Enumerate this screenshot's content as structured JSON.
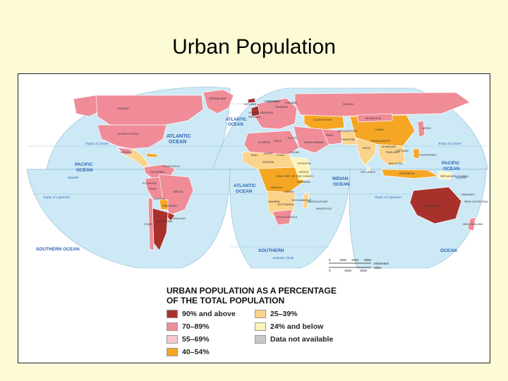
{
  "slide": {
    "title": "Urban Population"
  },
  "colors": {
    "background": "#fdfbd6",
    "ocean": "#cde9f6",
    "cat_90_above": "#a8312c",
    "cat_70_89": "#ef8c97",
    "cat_55_69": "#f6c8c8",
    "cat_40_54": "#f5a623",
    "cat_25_39": "#fbd38a",
    "cat_24_below": "#fff4b8",
    "cat_na": "#c8c8c8"
  },
  "map": {
    "ocean_labels": {
      "atlantic_n": "ATLANTIC\nOCEAN",
      "pacific_w": "PACIFIC\nOCEAN",
      "pacific_e": "PACIFIC\nOCEAN",
      "atlantic_s": "ATLANTIC\nOCEAN",
      "indian": "INDIAN\nOCEAN",
      "southern_w": "SOUTHERN OCEAN",
      "southern_m": "SOUTHERN",
      "southern_e": "OCEAN"
    },
    "lines": {
      "arctic_circle": "Arctic Circle",
      "tropic_cancer_w": "Tropic of Cancer",
      "tropic_cancer_e": "Tropic of Cancer",
      "equator_w": "Equator",
      "equator_e": "Equator",
      "tropic_capricorn_w": "Tropic of Capricorn",
      "tropic_capricorn_e": "Tropic of Capricorn",
      "antarctic_circle": "Antarctic Circle"
    },
    "countries": {
      "greenland": "GREENLAND",
      "us_alaska": "U.S.\n(Alaska)",
      "canada": "CANADA",
      "united_states": "UNITED STATES",
      "us_hawaii": "U.S.\n(Hawaii)",
      "mexico": "MEXICO",
      "brazil": "BRAZIL",
      "argentina": "ARGENTINA",
      "bolivia": "BOLIVIA",
      "peru": "PERU",
      "colombia": "COLOMBIA",
      "venezuela": "VENEZUELA",
      "paraguay": "PARAGUAY",
      "uruguay": "URUGUAY",
      "chile": "CHILE",
      "ecuador": "ECUADOR",
      "iceland": "ICELAND",
      "norway": "NORWAY",
      "sweden": "SWEDEN",
      "finland": "FINLAND",
      "united_kingdom": "UNITED KINGDOM",
      "ireland": "IRELAND",
      "russia": "RUSSIA",
      "kazakhstan": "KAZAKHSTAN",
      "mongolia": "MONGOLIA",
      "china": "CHINA",
      "japan": "JAPAN",
      "india": "INDIA",
      "iran": "IRAN",
      "saudi_arabia": "SAUDI\nARABIA",
      "pakistan": "PAKISTAN",
      "afghanistan": "AFGHANISTAN",
      "bangladesh": "BANGLADESH",
      "myanmar": "MYANMAR",
      "thailand": "THAILAND",
      "vietnam": "VIETNAM",
      "philippines": "PHILIPPINES",
      "indonesia": "INDONESIA",
      "malaysia": "MALAYSIA",
      "papua_new_guinea": "PAPUA\nNEW GUINEA",
      "australia": "AUSTRALIA",
      "new_zealand": "NEW\nZEALAND",
      "algeria": "ALGERIA",
      "libya": "LIBYA",
      "egypt": "EGYPT",
      "mali": "MALI",
      "niger": "NIGER",
      "chad": "CHAD",
      "sudan": "SUDAN",
      "nigeria": "NIGERIA",
      "ethiopia": "ETHIOPIA",
      "kenya": "KENYA",
      "tanzania": "TANZANIA",
      "angola": "ANGOLA",
      "dem_rep_congo": "DEM. REP.\nOF THE CONGO",
      "zambia": "ZAMBIA",
      "namibia": "NAMIBIA",
      "botswana": "BOTSWANA",
      "south_africa": "SOUTH\nAFRICA",
      "madagascar": "MADAGASCAR",
      "mozambique": "MOZAMBIQUE",
      "mauritius": "MAURITIUS",
      "sri_lanka": "SRI LANKA",
      "vanuatu": "VANUATU",
      "new_caledonia": "NEW\nCALEDONIA"
    },
    "scale": {
      "km_label": "Kilometers",
      "mi_label": "Miles",
      "km_ticks": [
        "0",
        "1000",
        "2000",
        "3000"
      ],
      "mi_ticks": [
        "0",
        "1000",
        "2000"
      ]
    }
  },
  "legend": {
    "title": "URBAN POPULATION AS A PERCENTAGE\nOF THE TOTAL POPULATION",
    "items": [
      {
        "label": "90% and above",
        "color": "#a8312c"
      },
      {
        "label": "70–89%",
        "color": "#ef8c97"
      },
      {
        "label": "55–69%",
        "color": "#f6c8c8"
      },
      {
        "label": "40–54%",
        "color": "#f5a623"
      },
      {
        "label": "25–39%",
        "color": "#fbd38a"
      },
      {
        "label": "24% and below",
        "color": "#fff4b8"
      },
      {
        "label": "Data not available",
        "color": "#c8c8c8"
      }
    ]
  }
}
